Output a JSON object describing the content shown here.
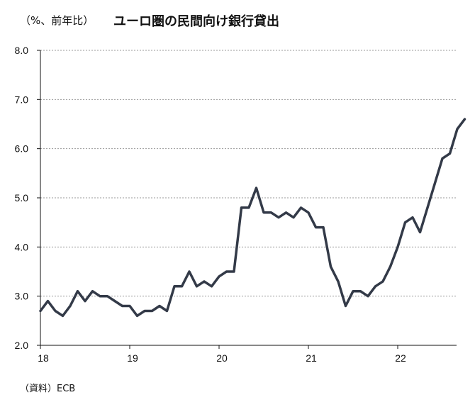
{
  "header": {
    "unit_label": "（%、前年比）",
    "title": "ユーロ圏の民間向け銀行貸出"
  },
  "footer": {
    "source": "（資料）ECB"
  },
  "chart_data": {
    "type": "line",
    "title": "ユーロ圏の民間向け銀行貸出",
    "ylabel": "（%、前年比）",
    "ylim": [
      2.0,
      8.0
    ],
    "yticks": [
      "2.0",
      "3.0",
      "4.0",
      "5.0",
      "6.0",
      "7.0",
      "8.0"
    ],
    "xticks": [
      "18",
      "19",
      "20",
      "21",
      "22"
    ],
    "grid": true,
    "color": "#333a48",
    "series": [
      {
        "x_start": "2018-01",
        "frequency": "monthly",
        "values": [
          2.7,
          2.9,
          2.7,
          2.6,
          2.8,
          3.1,
          2.9,
          3.1,
          3.0,
          3.0,
          2.9,
          2.8,
          2.8,
          2.6,
          2.7,
          2.7,
          2.8,
          2.7,
          3.2,
          3.2,
          3.5,
          3.2,
          3.3,
          3.2,
          3.4,
          3.5,
          3.5,
          4.8,
          4.8,
          5.2,
          4.7,
          4.7,
          4.6,
          4.7,
          4.6,
          4.8,
          4.7,
          4.4,
          4.4,
          3.6,
          3.3,
          2.8,
          3.1,
          3.1,
          3.0,
          3.2,
          3.3,
          3.6,
          4.0,
          4.5,
          4.6,
          4.3,
          4.8,
          5.3,
          5.8,
          5.9,
          6.4,
          6.6
        ]
      }
    ]
  }
}
